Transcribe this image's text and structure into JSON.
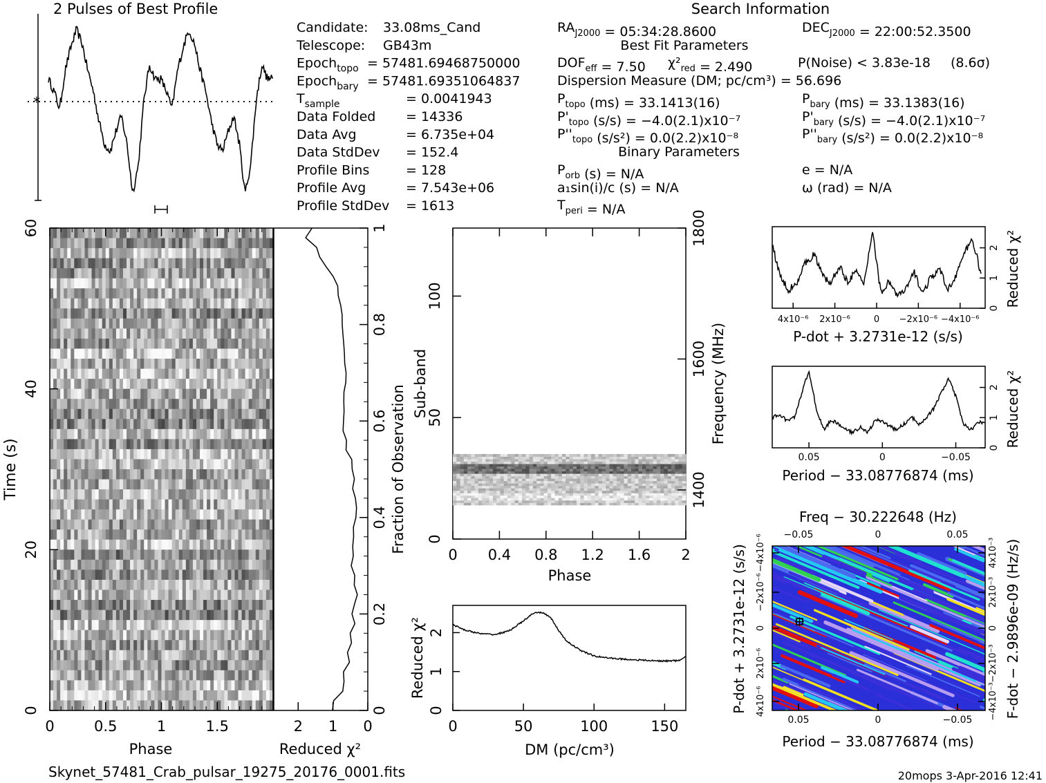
{
  "title_profile": "2 Pulses of Best Profile",
  "title_search": "Search Information",
  "candidate_info": [
    {
      "label": "Candidate:",
      "value": "33.08ms_Cand"
    },
    {
      "label": "Telescope:",
      "value": "GB43m"
    },
    {
      "label": "Epoch_topo",
      "value": "= 57481.69468750000"
    },
    {
      "label": "Epoch_bary",
      "value": "= 57481.69351064837"
    },
    {
      "label": "T_sample",
      "value": "= 0.0041943"
    },
    {
      "label": "Data Folded",
      "value": "= 14336"
    },
    {
      "label": "Data Avg",
      "value": "= 6.735e+04"
    },
    {
      "label": "Data StdDev",
      "value": "= 152.4"
    },
    {
      "label": "Profile Bins",
      "value": "= 128"
    },
    {
      "label": "Profile Avg",
      "value": "= 7.543e+06"
    },
    {
      "label": "Profile StdDev",
      "value": "= 1613"
    }
  ],
  "search_info": {
    "ra": "RA_J2000 = 05:34:28.8600",
    "dec": "DEC_J2000 = 22:00:52.3500",
    "best_fit_header": "Best Fit Parameters",
    "dof": "DOF_eff = 7.50",
    "chi2": "χ²_red = 2.490",
    "p_noise": "P(Noise) < 3.83e-18",
    "sigma": "(8.6σ)",
    "dm": "Dispersion Measure (DM; pc/cm³) = 56.696",
    "p_topo": "P_topo (ms) = 33.1413(16)",
    "p_bary": "P_bary (ms) = 33.1383(16)",
    "pd_topo": "P'_topo (s/s) = −4.0(2.1)x10⁻⁷",
    "pd_bary": "P'_bary (s/s) = −4.0(2.1)x10⁻⁷",
    "pdd_topo": "P''_topo (s/s²) = 0.0(2.2)x10⁻⁸",
    "pdd_bary": "P''_bary (s/s²) = 0.0(2.2)x10⁻⁸",
    "binary_header": "Binary Parameters",
    "p_orb": "P_orb (s) = N/A",
    "e": "e = N/A",
    "a1sini": "a₁sin(i)/c (s) = N/A",
    "omega": "ω (rad) = N/A",
    "t_peri": "T_peri = N/A"
  },
  "filename": "Skynet_57481_Crab_pulsar_19275_20176_0001.fits",
  "stamp": "20mops  3-Apr-2016 12:41",
  "chart_data": [
    {
      "name": "profile",
      "type": "line",
      "title": "2 Pulses of Best Profile",
      "x_range": [
        0,
        2
      ],
      "description_points": "phase vs intensity (normalized 0..1)",
      "x": [
        0.0,
        0.05,
        0.1,
        0.15,
        0.2,
        0.25,
        0.3,
        0.35,
        0.4,
        0.45,
        0.5,
        0.55,
        0.6,
        0.65,
        0.7,
        0.75,
        0.8,
        0.85,
        0.9,
        0.95,
        1.0,
        1.05,
        1.1,
        1.15,
        1.2,
        1.25,
        1.3,
        1.35,
        1.4,
        1.45,
        1.5,
        1.55,
        1.6,
        1.65,
        1.7,
        1.75,
        1.8,
        1.85,
        1.9,
        1.95,
        2.0
      ],
      "y": [
        0.67,
        0.6,
        0.5,
        0.72,
        0.85,
        0.95,
        0.87,
        0.72,
        0.6,
        0.43,
        0.3,
        0.26,
        0.37,
        0.46,
        0.3,
        0.02,
        0.18,
        0.55,
        0.75,
        0.67,
        0.67,
        0.6,
        0.5,
        0.72,
        0.85,
        0.95,
        0.87,
        0.72,
        0.6,
        0.43,
        0.3,
        0.26,
        0.37,
        0.46,
        0.3,
        0.02,
        0.18,
        0.55,
        0.75,
        0.67,
        0.67
      ]
    },
    {
      "name": "time-phase",
      "type": "heatmap",
      "xlabel": "Phase",
      "ylabel": "Time (s)",
      "x_ticks": [
        "0",
        "0.5",
        "1",
        "1.5"
      ],
      "y_ticks": [
        "0",
        "20",
        "40",
        "60"
      ],
      "ylim": [
        0,
        60
      ],
      "xlim": [
        0,
        2
      ]
    },
    {
      "name": "reduced-chi2-vs-time",
      "type": "line",
      "xlabel": "Reduced χ²",
      "x_ticks": [
        "2",
        "1",
        "0"
      ],
      "y2label": "Fraction of Observation",
      "y2_ticks": [
        "0",
        "0.2",
        "0.4",
        "0.6",
        "0.8",
        "1"
      ],
      "fraction": [
        0.0,
        0.02,
        0.04,
        0.06,
        0.08,
        0.1,
        0.12,
        0.14,
        0.16,
        0.18,
        0.2,
        0.22,
        0.24,
        0.26,
        0.28,
        0.3,
        0.32,
        0.34,
        0.36,
        0.38,
        0.4,
        0.42,
        0.44,
        0.46,
        0.48,
        0.5,
        0.52,
        0.54,
        0.56,
        0.58,
        0.6,
        0.62,
        0.64,
        0.66,
        0.68,
        0.7,
        0.72,
        0.74,
        0.76,
        0.78,
        0.8,
        0.82,
        0.84,
        0.86,
        0.88,
        0.9,
        0.92,
        0.94,
        0.96,
        0.98,
        1.0
      ],
      "chi2": [
        1.0,
        1.0,
        0.75,
        0.65,
        0.7,
        0.55,
        0.6,
        0.45,
        0.5,
        0.4,
        0.45,
        0.35,
        0.3,
        0.38,
        0.35,
        0.45,
        0.42,
        0.4,
        0.38,
        0.42,
        0.38,
        0.36,
        0.38,
        0.4,
        0.42,
        0.45,
        0.5,
        0.6,
        0.65,
        0.68,
        0.7,
        0.68,
        0.67,
        0.68,
        0.65,
        0.65,
        0.66,
        0.67,
        0.68,
        0.69,
        0.7,
        0.75,
        0.78,
        0.85,
        0.9,
        1.0,
        1.2,
        1.4,
        1.5,
        1.75,
        1.6
      ]
    },
    {
      "name": "subband-phase",
      "type": "heatmap",
      "xlabel": "Phase",
      "ylabel": "Sub-band",
      "y2label": "Frequency (MHz)",
      "x_ticks": [
        "0",
        "0.4",
        "0.8",
        "1.2",
        "1.6",
        "2"
      ],
      "y_ticks": [
        "0",
        "50",
        "100"
      ],
      "y2_ticks": [
        "1400",
        "1600",
        "1800"
      ],
      "xlim": [
        0,
        2
      ],
      "ylim": [
        0,
        128
      ]
    },
    {
      "name": "chi2-vs-dm",
      "type": "line",
      "xlabel": "DM (pc/cm³)",
      "ylabel": "Reduced χ²",
      "x_ticks": [
        "0",
        "50",
        "100",
        "150"
      ],
      "y_ticks": [
        "0",
        "1",
        "2"
      ],
      "xlim": [
        0,
        165
      ],
      "ylim": [
        0,
        2.7
      ],
      "x": [
        0,
        10,
        20,
        30,
        40,
        50,
        55,
        60,
        65,
        70,
        75,
        80,
        90,
        100,
        110,
        120,
        130,
        140,
        150,
        160,
        165
      ],
      "y": [
        2.2,
        2.05,
        1.97,
        1.95,
        2.05,
        2.3,
        2.45,
        2.52,
        2.5,
        2.35,
        2.05,
        1.8,
        1.55,
        1.4,
        1.35,
        1.32,
        1.3,
        1.28,
        1.27,
        1.28,
        1.38
      ]
    },
    {
      "name": "chi2-vs-pdot",
      "type": "line",
      "xlabel": "P-dot + 3.2731e-12 (s/s)",
      "ylabel": "Reduced χ²",
      "x_ticks": [
        "4x10⁻⁶",
        "2x10⁻⁶",
        "0",
        "−2x10⁻⁶",
        "−4x10⁻⁶"
      ],
      "y_ticks": [
        "0",
        "1",
        "2"
      ],
      "xlim": [
        5e-06,
        -5.2e-06
      ],
      "ylim": [
        0,
        2.7
      ],
      "x": [
        5e-06,
        4.6e-06,
        4.2e-06,
        3.8e-06,
        3.4e-06,
        3e-06,
        2.6e-06,
        2.2e-06,
        1.8e-06,
        1.4e-06,
        1e-06,
        6e-07,
        2e-07,
        -2e-07,
        -6e-07,
        -1e-06,
        -1.4e-06,
        -1.8e-06,
        -2.2e-06,
        -2.6e-06,
        -3e-06,
        -3.4e-06,
        -3.8e-06,
        -4.2e-06,
        -4.6e-06,
        -5e-06
      ],
      "y": [
        2.1,
        1.0,
        0.6,
        0.9,
        1.5,
        1.8,
        1.1,
        0.8,
        1.4,
        0.9,
        1.2,
        0.8,
        2.6,
        0.5,
        0.9,
        0.4,
        0.6,
        1.2,
        0.5,
        1.0,
        1.3,
        0.6,
        1.1,
        1.8,
        2.3,
        1.1
      ]
    },
    {
      "name": "chi2-vs-period",
      "type": "line",
      "xlabel": "Period − 33.08776874 (ms)",
      "ylabel": "Reduced χ²",
      "x_ticks": [
        "0.05",
        "0",
        "−0.05"
      ],
      "y_ticks": [
        "0",
        "1",
        "2"
      ],
      "xlim": [
        0.075,
        -0.07
      ],
      "ylim": [
        0,
        2.7
      ],
      "x": [
        0.075,
        0.07,
        0.065,
        0.06,
        0.055,
        0.05,
        0.045,
        0.04,
        0.035,
        0.03,
        0.025,
        0.02,
        0.015,
        0.01,
        0.005,
        0.0,
        -0.005,
        -0.01,
        -0.015,
        -0.02,
        -0.025,
        -0.03,
        -0.035,
        -0.04,
        -0.045,
        -0.05,
        -0.055,
        -0.06,
        -0.065,
        -0.07
      ],
      "y": [
        1.0,
        1.1,
        0.9,
        1.0,
        1.8,
        2.55,
        1.3,
        0.6,
        0.9,
        0.8,
        0.6,
        0.5,
        0.7,
        0.5,
        0.9,
        0.9,
        0.7,
        0.6,
        0.8,
        1.0,
        0.8,
        1.0,
        1.3,
        1.8,
        2.3,
        1.7,
        0.8,
        0.6,
        0.8,
        0.9
      ]
    },
    {
      "name": "pdot-period-plane",
      "type": "heatmap",
      "title": "Freq − 30.222648 (Hz)",
      "xlabel": "Period − 33.08776874 (ms)",
      "ylabel": "P-dot + 3.2731e-12 (s/s)",
      "y2label": "F-dot − 2.9896e-09 (Hz/s)",
      "top_ticks": [
        "−0.05",
        "0",
        "0.05"
      ],
      "x_ticks": [
        "0.05",
        "0",
        "−0.05"
      ],
      "y_ticks": [
        "4x10⁻⁶",
        "2x10⁻⁶",
        "0",
        "−2x10⁻⁶",
        "−4x10⁻⁶"
      ],
      "y2_ticks": [
        "−4x10⁻³",
        "−2x10⁻³",
        "0",
        "2x10⁻³",
        "4x10⁻³"
      ]
    }
  ],
  "colors": {
    "line": "#000000",
    "background": "#ffffff",
    "heat_low": "#2a1fd8",
    "heat_mid": "#25c8f0",
    "heat_high": "#e01010"
  }
}
